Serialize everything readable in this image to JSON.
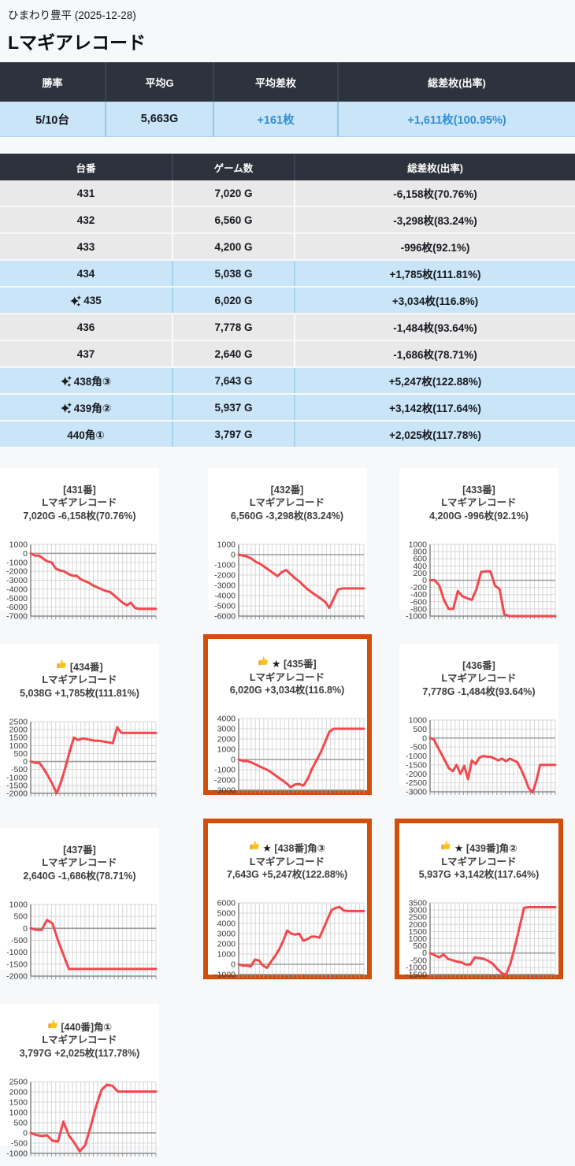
{
  "page": {
    "hall": "ひまわり豊平 (2025-12-28)",
    "machine_name": "Lマギアレコード"
  },
  "colors": {
    "header_dark": "#2d333d",
    "row_blue": "#cbe5f8",
    "row_gray": "#e9e9ea",
    "accent_blue_text": "#2f8fd9",
    "chart_line_red": "#f2484e",
    "highlight_border_orange": "#d14f0a"
  },
  "icons": {
    "sparkle": "sparkles-icon",
    "thumb": "thumbs-up-icon",
    "star": "★"
  },
  "summary": {
    "headers": [
      "勝率",
      "平均G",
      "平均差枚",
      "総差枚(出率)"
    ],
    "values": [
      "5/10台",
      "5,663G",
      "+161枚",
      "+1,611枚(100.95%)"
    ]
  },
  "machine_table": {
    "headers": [
      "台番",
      "ゲーム数",
      "総差枚(出率)"
    ],
    "rows": [
      {
        "dai": "431",
        "games": "7,020 G",
        "diff": "-6,158枚(70.76%)",
        "highlight": false,
        "sparkle": false
      },
      {
        "dai": "432",
        "games": "6,560 G",
        "diff": "-3,298枚(83.24%)",
        "highlight": false,
        "sparkle": false
      },
      {
        "dai": "433",
        "games": "4,200 G",
        "diff": "-996枚(92.1%)",
        "highlight": false,
        "sparkle": false
      },
      {
        "dai": "434",
        "games": "5,038 G",
        "diff": "+1,785枚(111.81%)",
        "highlight": true,
        "sparkle": false
      },
      {
        "dai": "435",
        "games": "6,020 G",
        "diff": "+3,034枚(116.8%)",
        "highlight": true,
        "sparkle": true
      },
      {
        "dai": "436",
        "games": "7,778 G",
        "diff": "-1,484枚(93.64%)",
        "highlight": false,
        "sparkle": false
      },
      {
        "dai": "437",
        "games": "2,640 G",
        "diff": "-1,686枚(78.71%)",
        "highlight": false,
        "sparkle": false
      },
      {
        "dai": "438角③",
        "games": "7,643 G",
        "diff": "+5,247枚(122.88%)",
        "highlight": true,
        "sparkle": true
      },
      {
        "dai": "439角②",
        "games": "5,937 G",
        "diff": "+3,142枚(117.64%)",
        "highlight": true,
        "sparkle": true
      },
      {
        "dai": "440角①",
        "games": "3,797 G",
        "diff": "+2,025枚(117.78%)",
        "highlight": true,
        "sparkle": false
      }
    ]
  },
  "chart_data": {
    "note": "slump graphs, one per machine; values are medal diff over the day",
    "type": "line"
  },
  "charts": [
    {
      "title_line1": "[431番]",
      "title_line2": "Lマギアレコード",
      "title_line3": "7,020G -6,158枚(70.76%)",
      "thumb": false,
      "star": false,
      "highlight_border": false,
      "ymax": 1000,
      "ymin": -7000,
      "ystep": 1000,
      "values": [
        0,
        -250,
        -250,
        -600,
        -900,
        -1000,
        -1700,
        -1900,
        -2000,
        -2300,
        -2500,
        -2500,
        -2900,
        -3100,
        -3300,
        -3600,
        -3800,
        -4000,
        -4200,
        -4300,
        -4700,
        -5100,
        -5500,
        -5800,
        -5500,
        -6100,
        -6200,
        -6200,
        -6200,
        -6200,
        -6200
      ]
    },
    {
      "title_line1": "[432番]",
      "title_line2": "Lマギアレコード",
      "title_line3": "6,560G -3,298枚(83.24%)",
      "thumb": false,
      "star": false,
      "highlight_border": false,
      "ymax": 1000,
      "ymin": -6000,
      "ystep": 1000,
      "values": [
        0,
        -100,
        -200,
        -400,
        -700,
        -900,
        -1200,
        -1500,
        -1800,
        -2100,
        -1700,
        -1500,
        -1900,
        -2300,
        -2600,
        -3000,
        -3400,
        -3700,
        -4000,
        -4300,
        -4600,
        -5200,
        -4300,
        -3400,
        -3300,
        -3300,
        -3300,
        -3300,
        -3300,
        -3300
      ]
    },
    {
      "title_line1": "[433番]",
      "title_line2": "Lマギアレコード",
      "title_line3": "4,200G -996枚(92.1%)",
      "thumb": false,
      "star": false,
      "highlight_border": false,
      "ymax": 1000,
      "ymin": -1000,
      "ystep": 200,
      "values": [
        0,
        0,
        -150,
        -550,
        -800,
        -800,
        -300,
        -450,
        -500,
        -550,
        -250,
        230,
        250,
        250,
        -150,
        -250,
        -950,
        -1000,
        -1000,
        -1000,
        -1000,
        -1000,
        -1000,
        -1000,
        -1000,
        -1000,
        -1000,
        -1000
      ]
    },
    {
      "title_line1": "[434番]",
      "title_line2": "Lマギアレコード",
      "title_line3": "5,038G +1,785枚(111.81%)",
      "thumb": true,
      "star": false,
      "highlight_border": false,
      "ymax": 2500,
      "ymin": -2000,
      "ystep": 500,
      "values": [
        0,
        -80,
        -80,
        -450,
        -900,
        -1400,
        -2000,
        -1300,
        -400,
        600,
        1500,
        1350,
        1450,
        1400,
        1350,
        1300,
        1300,
        1250,
        1200,
        1150,
        2150,
        1800,
        1800,
        1800,
        1800,
        1800,
        1800,
        1800,
        1800,
        1800
      ]
    },
    {
      "title_line1": "[435番]",
      "title_line2": "Lマギアレコード",
      "title_line3": "6,020G +3,034枚(116.8%)",
      "thumb": true,
      "star": true,
      "highlight_border": true,
      "ymax": 4000,
      "ymin": -3000,
      "ystep": 1000,
      "values": [
        0,
        -150,
        -150,
        -300,
        -500,
        -700,
        -900,
        -1100,
        -1400,
        -1700,
        -2000,
        -2300,
        -2700,
        -2450,
        -2400,
        -2550,
        -1900,
        -900,
        -100,
        700,
        1700,
        2700,
        3000,
        3000,
        3000,
        3000,
        3000,
        3000,
        3000,
        3000
      ]
    },
    {
      "title_line1": "[436番]",
      "title_line2": "Lマギアレコード",
      "title_line3": "7,778G -1,484枚(93.64%)",
      "thumb": false,
      "star": false,
      "highlight_border": false,
      "ymax": 1000,
      "ymin": -3000,
      "ystep": 500,
      "values": [
        0,
        -80,
        -500,
        -900,
        -1300,
        -1700,
        -1850,
        -1500,
        -2000,
        -1550,
        -2300,
        -1250,
        -1450,
        -1100,
        -1000,
        -1050,
        -1050,
        -1150,
        -1250,
        -1150,
        -1300,
        -1150,
        -1250,
        -1350,
        -1750,
        -2250,
        -2800,
        -3050,
        -2400,
        -1500,
        -1500,
        -1500,
        -1500,
        -1500
      ]
    },
    {
      "title_line1": "[437番]",
      "title_line2": "Lマギアレコード",
      "title_line3": "2,640G -1,686枚(78.71%)",
      "thumb": false,
      "star": false,
      "highlight_border": false,
      "ymax": 1000,
      "ymin": -2000,
      "ystep": 500,
      "values": [
        0,
        -60,
        -60,
        350,
        200,
        -500,
        -1100,
        -1700,
        -1700,
        -1700,
        -1700,
        -1700,
        -1700,
        -1700,
        -1700,
        -1700,
        -1700,
        -1700,
        -1700,
        -1700,
        -1700,
        -1700,
        -1700,
        -1700
      ]
    },
    {
      "title_line1": "[438番]角③",
      "title_line2": "Lマギアレコード",
      "title_line3": "7,643G +5,247枚(122.88%)",
      "thumb": true,
      "star": true,
      "highlight_border": true,
      "ymax": 6000,
      "ymin": -1000,
      "ystep": 1000,
      "values": [
        0,
        -120,
        -120,
        -200,
        450,
        380,
        -120,
        -350,
        250,
        800,
        1450,
        2250,
        3300,
        3000,
        2900,
        3000,
        2300,
        2450,
        2700,
        2700,
        2600,
        3500,
        4400,
        5300,
        5500,
        5600,
        5250,
        5200,
        5200,
        5200,
        5200,
        5200
      ]
    },
    {
      "title_line1": "[439番]角②",
      "title_line2": "Lマギアレコード",
      "title_line3": "5,937G +3,142枚(117.64%)",
      "thumb": true,
      "star": true,
      "highlight_border": true,
      "ymax": 3500,
      "ymin": -1500,
      "ystep": 500,
      "values": [
        0,
        -150,
        -300,
        -100,
        -400,
        -500,
        -600,
        -650,
        -800,
        -800,
        -300,
        -350,
        -400,
        -550,
        -750,
        -1100,
        -1400,
        -1520,
        -700,
        500,
        1800,
        3150,
        3200,
        3200,
        3200,
        3200,
        3200,
        3200,
        3200
      ]
    },
    {
      "title_line1": "[440番]角①",
      "title_line2": "Lマギアレコード",
      "title_line3": "3,797G +2,025枚(117.78%)",
      "thumb": true,
      "star": false,
      "highlight_border": false,
      "ymax": 2500,
      "ymin": -1000,
      "ystep": 500,
      "values": [
        0,
        -100,
        -150,
        -120,
        -380,
        -420,
        550,
        -120,
        -480,
        -900,
        -600,
        300,
        1300,
        2100,
        2350,
        2300,
        2020,
        2020,
        2020,
        2020,
        2020,
        2020,
        2020,
        2020
      ]
    }
  ]
}
